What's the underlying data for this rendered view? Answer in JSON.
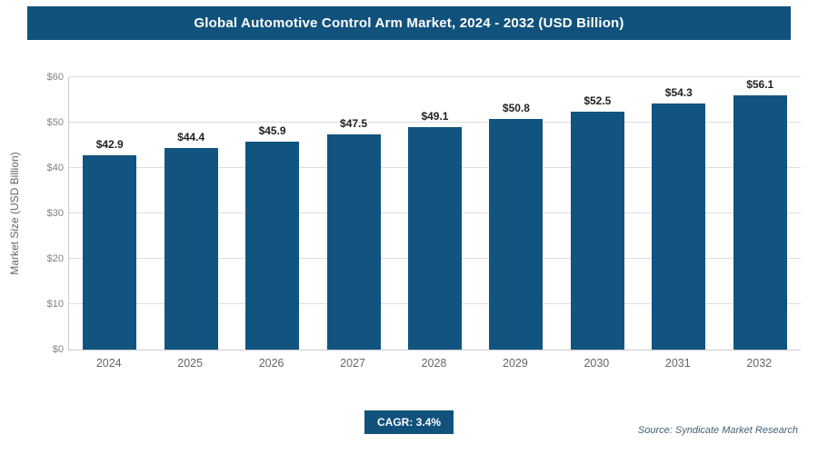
{
  "header": {
    "title": "Global Automotive Control Arm Market, 2024 - 2032 (USD Billion)"
  },
  "chart_data": {
    "type": "bar",
    "title": "Global Automotive Control Arm Market, 2024 - 2032 (USD Billion)",
    "categories": [
      "2024",
      "2025",
      "2026",
      "2027",
      "2028",
      "2029",
      "2030",
      "2031",
      "2032"
    ],
    "values": [
      42.9,
      44.4,
      45.9,
      47.5,
      49.1,
      50.8,
      52.5,
      54.3,
      56.1
    ],
    "value_labels": [
      "$42.9",
      "$44.4",
      "$45.9",
      "$47.5",
      "$49.1",
      "$50.8",
      "$52.5",
      "$54.3",
      "$56.1"
    ],
    "xlabel": "",
    "ylabel": "Market Size (USD Billion)",
    "ylim": [
      0,
      60
    ],
    "ytick_labels": [
      "$0",
      "$10",
      "$20",
      "$30",
      "$40",
      "$50",
      "$60"
    ],
    "grid": true,
    "legend": "none",
    "bar_color": "#125480"
  },
  "footer": {
    "cagr_label": "CAGR: 3.4%",
    "source": "Source: Syndicate Market Research"
  },
  "colors": {
    "accent": "#11527c",
    "bar": "#125480",
    "grid": "#dddddd",
    "tick_text": "#808080",
    "value_text": "#222222",
    "source_text": "#44607a"
  }
}
